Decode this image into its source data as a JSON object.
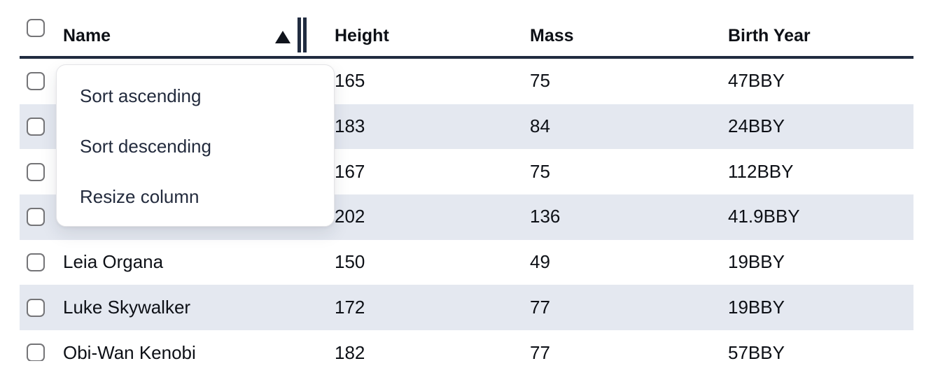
{
  "table": {
    "columns": [
      {
        "key": "name",
        "label": "Name",
        "sort": "ascending"
      },
      {
        "key": "height",
        "label": "Height"
      },
      {
        "key": "mass",
        "label": "Mass"
      },
      {
        "key": "birth_year",
        "label": "Birth Year"
      }
    ],
    "rows": [
      {
        "name": "",
        "height": "165",
        "mass": "75",
        "birth_year": "47BBY"
      },
      {
        "name": "",
        "height": "183",
        "mass": "84",
        "birth_year": "24BBY"
      },
      {
        "name": "",
        "height": "167",
        "mass": "75",
        "birth_year": "112BBY"
      },
      {
        "name": "",
        "height": "202",
        "mass": "136",
        "birth_year": "41.9BBY"
      },
      {
        "name": "Leia Organa",
        "height": "150",
        "mass": "49",
        "birth_year": "19BBY"
      },
      {
        "name": "Luke Skywalker",
        "height": "172",
        "mass": "77",
        "birth_year": "19BBY"
      },
      {
        "name": "Obi-Wan Kenobi",
        "height": "182",
        "mass": "77",
        "birth_year": "57BBY"
      }
    ],
    "checkboxes_checked": false
  },
  "context_menu": {
    "items": [
      "Sort ascending",
      "Sort descending",
      "Resize column"
    ]
  },
  "icons": {
    "sort_indicator": "triangle-up",
    "resize_handle": "double-vertical-bars"
  },
  "colors": {
    "row_stripe": "#e4e8f0",
    "header_border": "#212c40",
    "text": "#0d1016",
    "menu_text": "#232b3d",
    "checkbox_border": "#747477"
  }
}
